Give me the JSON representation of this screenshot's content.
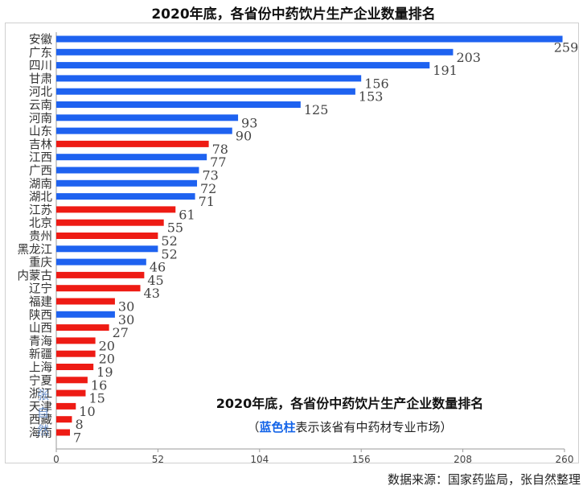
{
  "title": "2020年底，各省份中药饮片生产企业数量排名",
  "overlay": {
    "title": "2020年底，各省份中药饮片生产企业数量排名",
    "note_open": "（",
    "note_highlight": "蓝色柱",
    "note_rest": "表示该省有中药材专业市场）"
  },
  "source": "数据来源：国家药监局，张自然整理",
  "watermark": "张自然",
  "colors": {
    "blue": "#1e62f0",
    "red": "#ee1b14",
    "grid": "#d9d9d9",
    "axis": "#9a9a9a"
  },
  "chart_data": {
    "type": "bar",
    "orientation": "horizontal",
    "title": "2020年底，各省份中药饮片生产企业数量排名",
    "xlim": [
      0,
      260
    ],
    "xticks": [
      0,
      52,
      104,
      156,
      208,
      260
    ],
    "grid": false,
    "categories": [
      "安徽",
      "广东",
      "四川",
      "甘肃",
      "河北",
      "云南",
      "河南",
      "山东",
      "吉林",
      "江西",
      "广西",
      "湖南",
      "湖北",
      "江苏",
      "北京",
      "贵州",
      "黑龙江",
      "重庆",
      "内蒙古",
      "辽宁",
      "福建",
      "陕西",
      "山西",
      "青海",
      "新疆",
      "上海",
      "宁夏",
      "浙江",
      "天津",
      "西藏",
      "海南"
    ],
    "values": [
      259,
      203,
      191,
      156,
      153,
      125,
      93,
      90,
      78,
      77,
      73,
      72,
      71,
      61,
      55,
      52,
      52,
      46,
      45,
      43,
      30,
      30,
      27,
      20,
      20,
      19,
      16,
      15,
      10,
      8,
      7
    ],
    "has_herb_market": [
      true,
      true,
      true,
      true,
      true,
      true,
      true,
      true,
      false,
      true,
      true,
      true,
      true,
      false,
      false,
      false,
      true,
      true,
      false,
      false,
      false,
      true,
      false,
      false,
      false,
      false,
      false,
      false,
      false,
      false,
      false
    ]
  }
}
